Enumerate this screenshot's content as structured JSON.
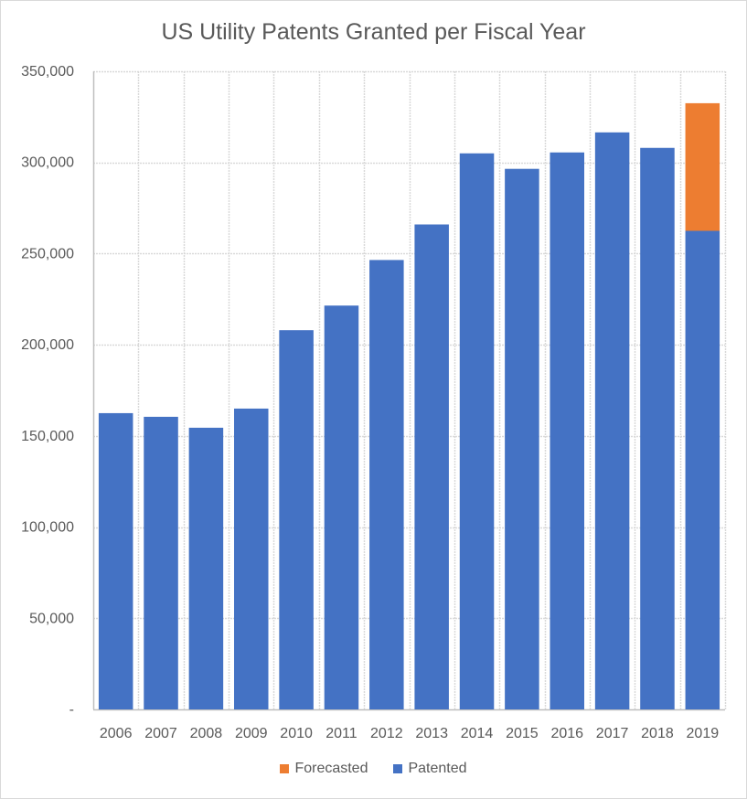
{
  "chart_data": {
    "type": "bar",
    "stacked": true,
    "title": "US Utility Patents Granted per Fiscal Year",
    "xlabel": "",
    "ylabel": "",
    "ylim": [
      0,
      350000
    ],
    "yticks": [
      0,
      50000,
      100000,
      150000,
      200000,
      250000,
      300000,
      350000
    ],
    "ytick_labels": [
      "-",
      "50,000",
      "100,000",
      "150,000",
      "200,000",
      "250,000",
      "300,000",
      "350,000"
    ],
    "grid": true,
    "legend_position": "bottom",
    "categories": [
      "2006",
      "2007",
      "2008",
      "2009",
      "2010",
      "2011",
      "2012",
      "2013",
      "2014",
      "2015",
      "2016",
      "2017",
      "2018",
      "2019"
    ],
    "series": [
      {
        "name": "Patented",
        "color": "#4472C4",
        "values": [
          162500,
          160500,
          154500,
          165000,
          208000,
          221500,
          246500,
          266000,
          305000,
          296500,
          305500,
          316500,
          308000,
          262500
        ]
      },
      {
        "name": "Forecasted",
        "color": "#ED7D31",
        "values": [
          0,
          0,
          0,
          0,
          0,
          0,
          0,
          0,
          0,
          0,
          0,
          0,
          0,
          70000
        ]
      }
    ],
    "legend": [
      "Forecasted",
      "Patented"
    ]
  }
}
